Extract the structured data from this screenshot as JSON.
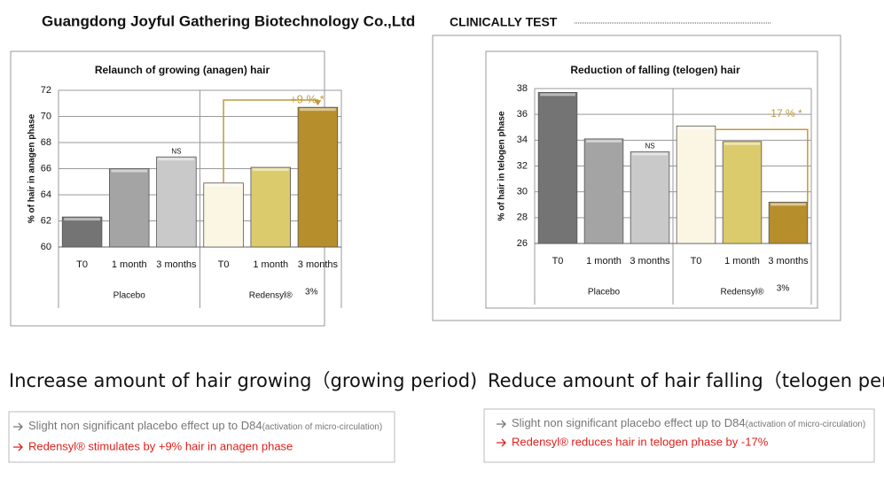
{
  "header": {
    "company": "Guangdong Joyful Gathering Biotechnology Co.,Ltd",
    "tag": "CLINICALLY TEST"
  },
  "chart_data": [
    {
      "type": "bar",
      "title": "Relaunch of growing (anagen) hair",
      "y_label": "% of hair in anagen phase",
      "categories": [
        "T0",
        "1 month",
        "3 months",
        "T0",
        "1 month",
        "3 months"
      ],
      "values": [
        62.3,
        66.0,
        66.9,
        64.9,
        66.1,
        70.7
      ],
      "colors": [
        "#747474",
        "#a4a4a4",
        "#c9c9c9",
        "#fbf6e4",
        "#dccb6c",
        "#b68e2c"
      ],
      "groups": [
        "Placebo",
        "Redensyl®"
      ],
      "dose": "3%",
      "ns_label": "NS",
      "change_label": "+9 % *",
      "ylim": [
        60,
        72
      ],
      "yticks": [
        60,
        62,
        64,
        66,
        68,
        70,
        72
      ],
      "grid": true
    },
    {
      "type": "bar",
      "title": "Reduction of falling (telogen) hair",
      "y_label": "% of hair in telogen phase",
      "categories": [
        "T0",
        "1 month",
        "3 months",
        "T0",
        "1 month",
        "3 months"
      ],
      "values": [
        37.7,
        34.1,
        33.1,
        35.1,
        33.9,
        29.2
      ],
      "colors": [
        "#747474",
        "#a4a4a4",
        "#c9c9c9",
        "#fbf6e4",
        "#dccb6c",
        "#b68e2c"
      ],
      "groups": [
        "Placebo",
        "Redensyl®"
      ],
      "dose": "3%",
      "ns_label": "NS",
      "change_label": "-17 % *",
      "ylim": [
        26,
        38
      ],
      "yticks": [
        26,
        28,
        30,
        32,
        34,
        36,
        38
      ],
      "grid": true
    }
  ],
  "captions": [
    "Increase amount of hair growing（growing period)",
    "Reduce amount of hair falling（telogen period)"
  ],
  "notes": [
    {
      "placebo": "Slight non significant placebo effect up to D84",
      "placebo_detail": "(activation of micro-circulation)",
      "result": "Redensyl® stimulates by +9% hair in anagen phase"
    },
    {
      "placebo": "Slight non significant placebo effect up to D84",
      "placebo_detail": "(activation of micro-circulation)",
      "result": "Redensyl® reduces hair in telogen phase by -17%"
    }
  ]
}
